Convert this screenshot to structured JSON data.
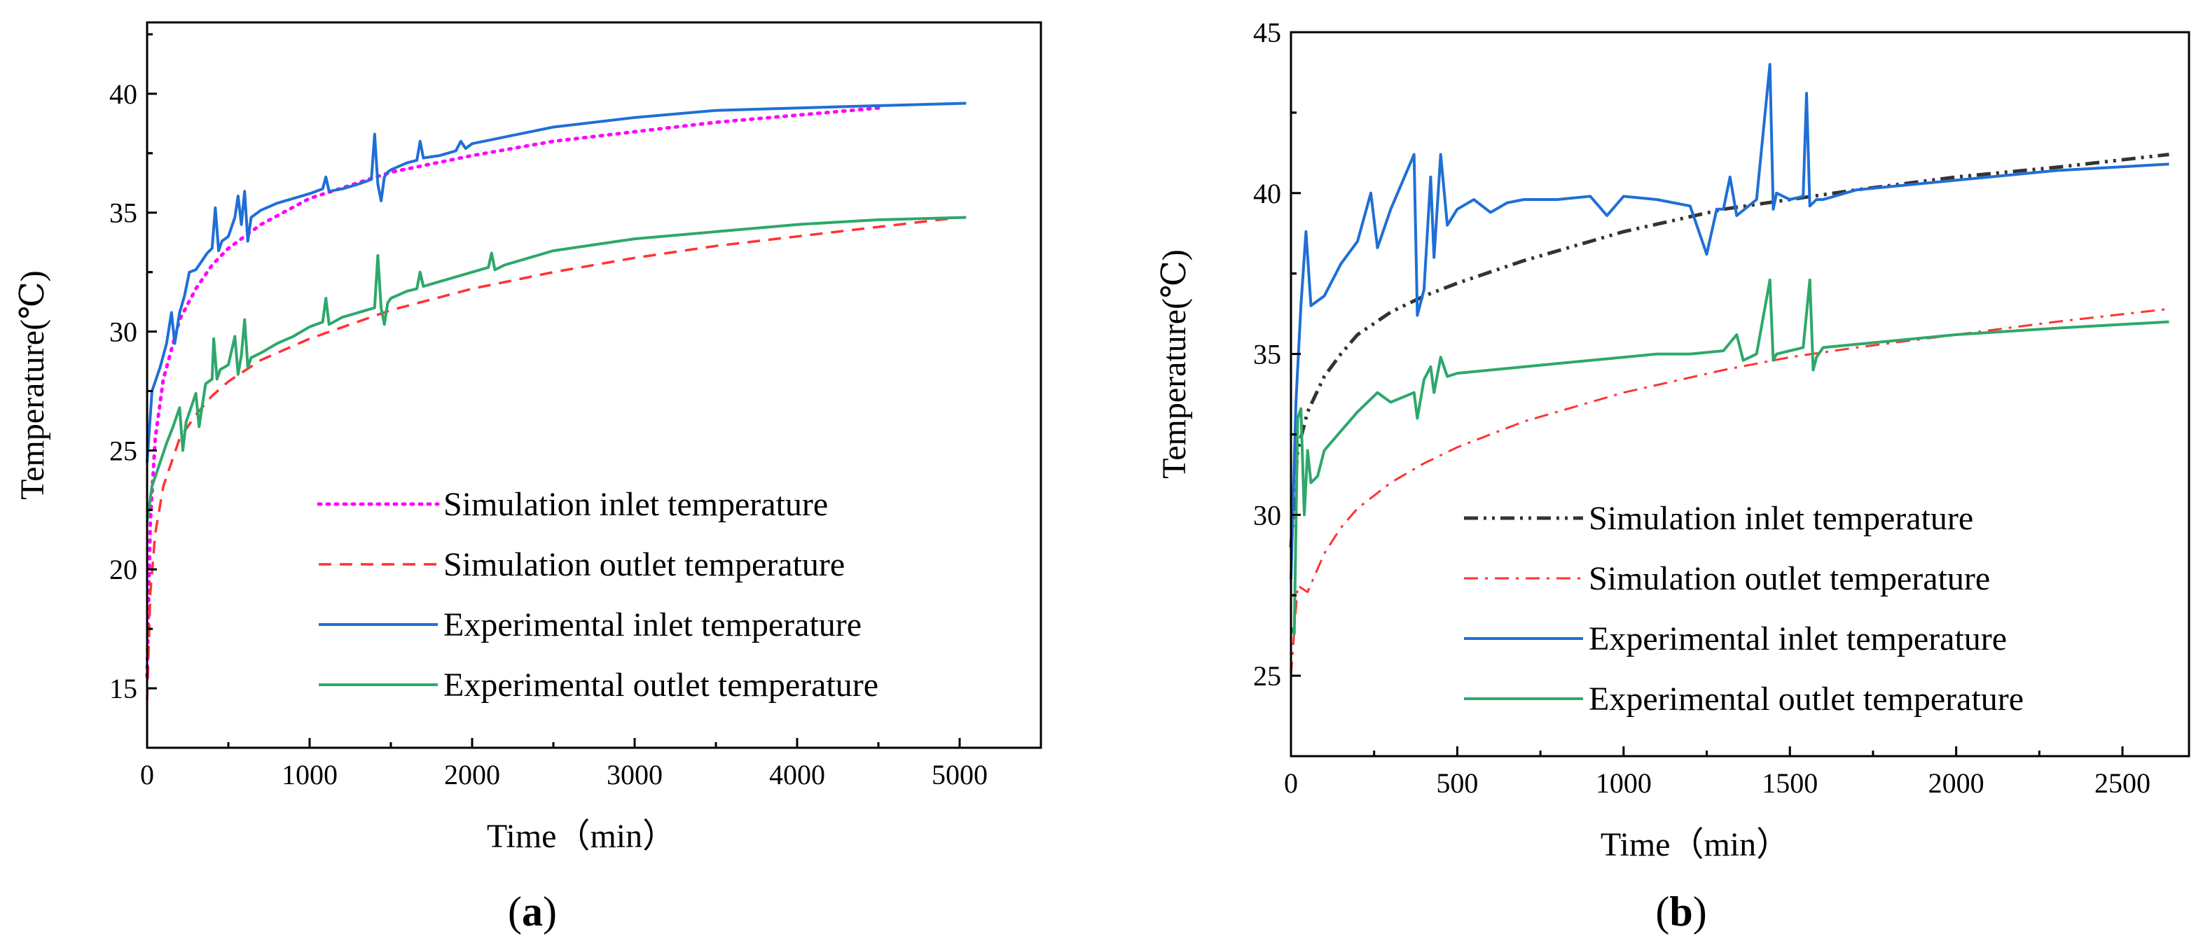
{
  "chart_data": [
    {
      "type": "line",
      "panel_label": {
        "open": "(",
        "letter": "a",
        "close": ")"
      },
      "xlabel": "Time（min）",
      "ylabel": "Temperature(℃)",
      "xlim": [
        0,
        5500
      ],
      "ylim": [
        12.5,
        43
      ],
      "xticks": [
        0,
        1000,
        2000,
        3000,
        4000,
        5000
      ],
      "yticks": [
        15,
        20,
        25,
        30,
        35,
        40
      ],
      "legend_position": "bottom-right",
      "series": [
        {
          "name": "Simulation inlet temperature",
          "color": "#ff00ff",
          "style": "dotted",
          "x": [
            0,
            20,
            50,
            100,
            200,
            300,
            400,
            500,
            700,
            1000,
            1500,
            2000,
            2500,
            3000,
            3500,
            4000,
            4500
          ],
          "y": [
            15.5,
            22,
            25.5,
            28,
            30.5,
            31.8,
            32.8,
            33.5,
            34.5,
            35.6,
            36.7,
            37.4,
            38,
            38.4,
            38.8,
            39.1,
            39.4
          ]
        },
        {
          "name": "Simulation outlet temperature",
          "color": "#ff3333",
          "style": "dashed",
          "x": [
            0,
            20,
            50,
            100,
            200,
            300,
            400,
            500,
            700,
            1000,
            1500,
            2000,
            2500,
            3000,
            3500,
            4000,
            4500,
            5000
          ],
          "y": [
            14.5,
            19,
            21.5,
            23.5,
            25.5,
            26.5,
            27.3,
            27.9,
            28.8,
            29.7,
            30.9,
            31.8,
            32.5,
            33.1,
            33.6,
            34,
            34.4,
            34.8
          ]
        },
        {
          "name": "Experimental inlet temperature",
          "color": "#1f6fd6",
          "style": "solid",
          "x": [
            0,
            30,
            80,
            120,
            150,
            170,
            200,
            230,
            260,
            300,
            330,
            370,
            400,
            420,
            440,
            460,
            500,
            540,
            560,
            580,
            600,
            620,
            640,
            700,
            800,
            900,
            1000,
            1080,
            1100,
            1120,
            1200,
            1300,
            1380,
            1400,
            1420,
            1440,
            1460,
            1480,
            1500,
            1600,
            1660,
            1680,
            1700,
            1800,
            1900,
            1930,
            1960,
            2000,
            2500,
            3000,
            3500,
            4000,
            4500,
            5040
          ],
          "y": [
            24.5,
            27.5,
            28.5,
            29.5,
            30.8,
            29.5,
            30.8,
            31.5,
            32.5,
            32.6,
            32.9,
            33.3,
            33.5,
            35.2,
            33.4,
            33.8,
            34,
            34.8,
            35.7,
            34.5,
            35.9,
            33.8,
            34.8,
            35.1,
            35.4,
            35.6,
            35.8,
            36,
            36.5,
            35.9,
            36,
            36.2,
            36.4,
            38.3,
            36.2,
            35.5,
            36.5,
            36.7,
            36.8,
            37.1,
            37.2,
            38,
            37.3,
            37.4,
            37.6,
            38,
            37.7,
            37.9,
            38.6,
            39,
            39.3,
            39.4,
            39.5,
            39.6
          ]
        },
        {
          "name": "Experimental outlet temperature",
          "color": "#2ea86b",
          "style": "solid",
          "x": [
            0,
            30,
            80,
            120,
            160,
            200,
            220,
            240,
            280,
            300,
            320,
            360,
            400,
            410,
            430,
            450,
            500,
            540,
            560,
            580,
            600,
            620,
            640,
            700,
            800,
            900,
            1000,
            1080,
            1100,
            1120,
            1200,
            1300,
            1400,
            1420,
            1440,
            1460,
            1480,
            1500,
            1600,
            1660,
            1680,
            1700,
            1800,
            2000,
            2100,
            2120,
            2140,
            2200,
            2500,
            3000,
            3500,
            4000,
            4500,
            5040
          ],
          "y": [
            22,
            23.5,
            24.5,
            25.3,
            26,
            26.8,
            25,
            26.2,
            27,
            27.4,
            26,
            27.8,
            28,
            29.7,
            28,
            28.4,
            28.6,
            29.8,
            28.2,
            29,
            30.5,
            28.5,
            28.9,
            29.1,
            29.5,
            29.8,
            30.2,
            30.4,
            31.4,
            30.3,
            30.6,
            30.8,
            31,
            33.2,
            31,
            30.3,
            31.2,
            31.4,
            31.7,
            31.8,
            32.5,
            31.9,
            32.1,
            32.5,
            32.7,
            33.3,
            32.6,
            32.8,
            33.4,
            33.9,
            34.2,
            34.5,
            34.7,
            34.8
          ]
        }
      ]
    },
    {
      "type": "line",
      "panel_label": {
        "open": "(",
        "letter": "b",
        "close": ")"
      },
      "xlabel": "Time（min）",
      "ylabel": "Temperature(℃)",
      "xlim": [
        0,
        2700
      ],
      "ylim": [
        22.5,
        45
      ],
      "xticks": [
        0,
        500,
        1000,
        1500,
        2000,
        2500
      ],
      "yticks": [
        25,
        30,
        35,
        40,
        45
      ],
      "legend_position": "bottom-right",
      "series": [
        {
          "name": "Simulation inlet temperature",
          "color": "#333333",
          "style": "dash-dot-dot",
          "x": [
            0,
            20,
            50,
            100,
            150,
            200,
            300,
            400,
            500,
            700,
            1000,
            1300,
            1500,
            1700,
            2000,
            2300,
            2640
          ],
          "y": [
            29,
            32,
            33.2,
            34.3,
            35,
            35.6,
            36.3,
            36.8,
            37.2,
            37.9,
            38.8,
            39.5,
            39.8,
            40.1,
            40.5,
            40.8,
            41.2
          ]
        },
        {
          "name": "Simulation outlet temperature",
          "color": "#ff3333",
          "style": "dash-dot",
          "x": [
            0,
            20,
            50,
            100,
            150,
            200,
            300,
            400,
            500,
            700,
            1000,
            1300,
            1500,
            1700,
            2000,
            2300,
            2640
          ],
          "y": [
            25,
            27.8,
            27.6,
            28.8,
            29.6,
            30.2,
            31,
            31.6,
            32.1,
            32.9,
            33.8,
            34.5,
            34.9,
            35.2,
            35.6,
            36,
            36.4
          ]
        },
        {
          "name": "Experimental inlet temperature",
          "color": "#1f6fd6",
          "style": "solid",
          "x": [
            0,
            15,
            30,
            45,
            60,
            100,
            150,
            200,
            240,
            260,
            300,
            370,
            380,
            400,
            420,
            430,
            450,
            470,
            500,
            550,
            600,
            650,
            700,
            800,
            900,
            950,
            1000,
            1100,
            1200,
            1250,
            1280,
            1300,
            1320,
            1340,
            1400,
            1440,
            1450,
            1460,
            1500,
            1540,
            1550,
            1560,
            1580,
            1600,
            1700,
            1800,
            2000,
            2300,
            2640
          ],
          "y": [
            28,
            33.5,
            36.5,
            38.8,
            36.5,
            36.8,
            37.8,
            38.5,
            40,
            38.3,
            39.5,
            41.2,
            36.2,
            37,
            40.5,
            38,
            41.2,
            39,
            39.5,
            39.8,
            39.4,
            39.7,
            39.8,
            39.8,
            39.9,
            39.3,
            39.9,
            39.8,
            39.6,
            38.1,
            39.5,
            39.5,
            40.5,
            39.3,
            39.8,
            44,
            39.5,
            40,
            39.8,
            39.9,
            43.1,
            39.6,
            39.8,
            39.8,
            40.1,
            40.2,
            40.4,
            40.7,
            40.9
          ]
        },
        {
          "name": "Experimental outlet temperature",
          "color": "#2ea86b",
          "style": "solid",
          "x": [
            0,
            10,
            20,
            30,
            40,
            50,
            60,
            80,
            100,
            150,
            200,
            240,
            260,
            300,
            370,
            380,
            400,
            420,
            430,
            450,
            470,
            500,
            600,
            700,
            800,
            900,
            1000,
            1100,
            1200,
            1300,
            1340,
            1360,
            1400,
            1440,
            1450,
            1460,
            1500,
            1540,
            1560,
            1570,
            1580,
            1600,
            1700,
            1800,
            2000,
            2300,
            2640
          ],
          "y": [
            26.5,
            26.3,
            33,
            33.3,
            30,
            32,
            31,
            31.2,
            32,
            32.6,
            33.2,
            33.6,
            33.8,
            33.5,
            33.8,
            33,
            34.2,
            34.6,
            33.8,
            34.9,
            34.3,
            34.4,
            34.5,
            34.6,
            34.7,
            34.8,
            34.9,
            35,
            35,
            35.1,
            35.6,
            34.8,
            35,
            37.3,
            34.8,
            35,
            35.1,
            35.2,
            37.3,
            34.5,
            34.9,
            35.2,
            35.3,
            35.4,
            35.6,
            35.8,
            36
          ]
        }
      ]
    }
  ]
}
